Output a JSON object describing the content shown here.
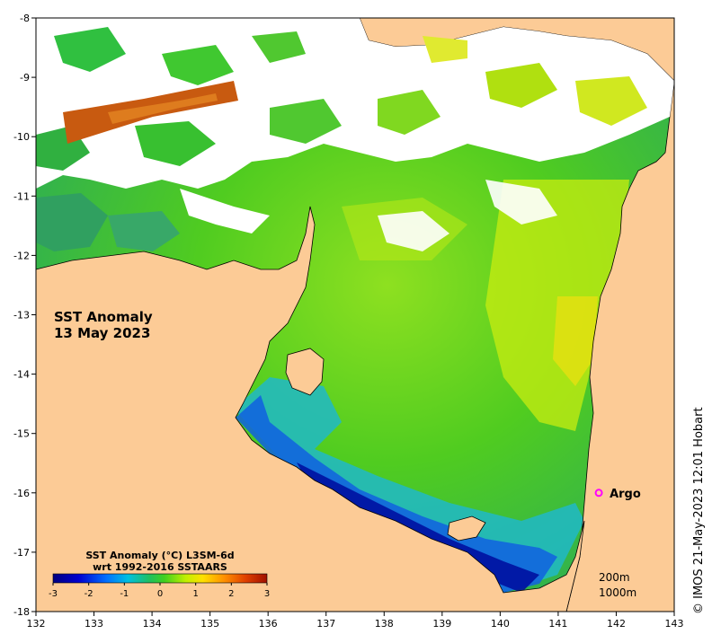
{
  "map": {
    "title_lines": [
      "SST Anomaly",
      "13 May 2023"
    ],
    "x_ticks": [
      "132",
      "133",
      "134",
      "135",
      "136",
      "137",
      "138",
      "139",
      "140",
      "141",
      "142",
      "143"
    ],
    "y_ticks": [
      "-8",
      "-9",
      "-10",
      "-11",
      "-12",
      "-13",
      "-14",
      "-15",
      "-16",
      "-17",
      "-18"
    ],
    "lon_range": [
      132,
      143
    ],
    "lat_range": [
      -18,
      -8
    ],
    "colors": {
      "land": "#fccb96",
      "cloud": "#ffffff",
      "coast": "#000000",
      "argo_marker": "#ff00ff"
    }
  },
  "colorbar": {
    "title_line1": "SST Anomaly (°C) L3SM-6d",
    "title_line2": "wrt 1992-2016 SSTAARS",
    "ticks": [
      "-3",
      "-2",
      "-1",
      "0",
      "1",
      "2",
      "3"
    ],
    "range": [
      -3,
      3
    ]
  },
  "argo": {
    "label": "Argo",
    "lon": 141.7,
    "lat": -16.0
  },
  "depth_labels": [
    "200m",
    "1000m"
  ],
  "credit": "© IMOS 21-May-2023 12:01 Hobart"
}
